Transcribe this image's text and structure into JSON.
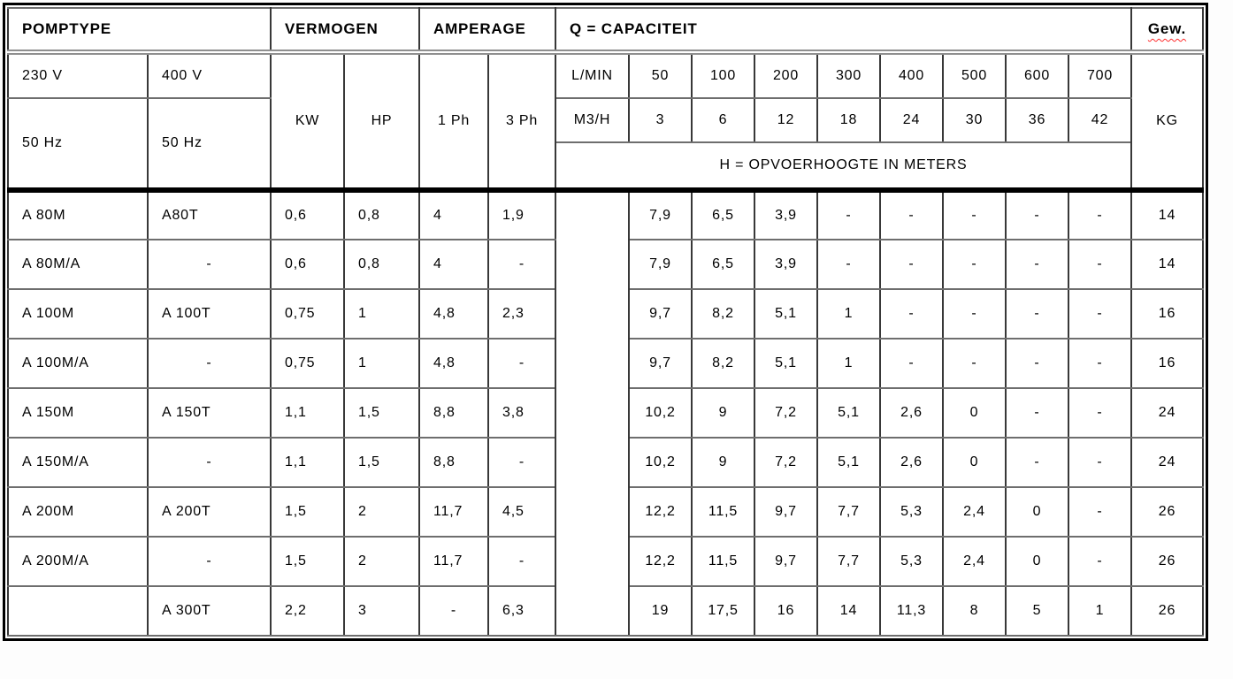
{
  "table": {
    "title_row": {
      "pomptype": "POMPTYPE",
      "vermogen": "VERMOGEN",
      "amperage": "AMPERAGE",
      "capaciteit": "Q = CAPACITEIT",
      "gewicht": "Gew."
    },
    "subheader": {
      "volt_230": "230 V",
      "volt_400": "400 V",
      "hz_230": "50 Hz",
      "hz_400": "50 Hz",
      "kw": "KW",
      "hp": "HP",
      "ph_1": "1 Ph",
      "ph_3": "3 Ph",
      "flow_lmin_label": "L/MIN",
      "flow_lmin": [
        "50",
        "100",
        "200",
        "300",
        "400",
        "500",
        "600",
        "700"
      ],
      "flow_m3h_label": "M3/H",
      "flow_m3h": [
        "3",
        "6",
        "12",
        "18",
        "24",
        "30",
        "36",
        "42"
      ],
      "head_note": "H = OPVOERHOOGTE IN METERS",
      "kg": "KG"
    },
    "rows": [
      {
        "t230": "A 80M",
        "t400": "A80T",
        "kw": "0,6",
        "hp": "0,8",
        "ph1": "4",
        "ph3": "1,9",
        "h": [
          "7,9",
          "6,5",
          "3,9",
          "-",
          "-",
          "-",
          "-",
          "-"
        ],
        "kg": "14"
      },
      {
        "t230": "A 80M/A",
        "t400": "-",
        "kw": "0,6",
        "hp": "0,8",
        "ph1": "4",
        "ph3": "-",
        "h": [
          "7,9",
          "6,5",
          "3,9",
          "-",
          "-",
          "-",
          "-",
          "-"
        ],
        "kg": "14"
      },
      {
        "t230": "A 100M",
        "t400": "A 100T",
        "kw": "0,75",
        "hp": "1",
        "ph1": "4,8",
        "ph3": "2,3",
        "h": [
          "9,7",
          "8,2",
          "5,1",
          "1",
          "-",
          "-",
          "-",
          "-"
        ],
        "kg": "16"
      },
      {
        "t230": "A 100M/A",
        "t400": "-",
        "kw": "0,75",
        "hp": "1",
        "ph1": "4,8",
        "ph3": "-",
        "h": [
          "9,7",
          "8,2",
          "5,1",
          "1",
          "-",
          "-",
          "-",
          "-"
        ],
        "kg": "16"
      },
      {
        "t230": "A 150M",
        "t400": "A 150T",
        "kw": "1,1",
        "hp": "1,5",
        "ph1": "8,8",
        "ph3": "3,8",
        "h": [
          "10,2",
          "9",
          "7,2",
          "5,1",
          "2,6",
          "0",
          "-",
          "-"
        ],
        "kg": "24"
      },
      {
        "t230": "A 150M/A",
        "t400": "-",
        "kw": "1,1",
        "hp": "1,5",
        "ph1": "8,8",
        "ph3": "-",
        "h": [
          "10,2",
          "9",
          "7,2",
          "5,1",
          "2,6",
          "0",
          "-",
          "-"
        ],
        "kg": "24"
      },
      {
        "t230": "A 200M",
        "t400": "A 200T",
        "kw": "1,5",
        "hp": "2",
        "ph1": "11,7",
        "ph3": "4,5",
        "h": [
          "12,2",
          "11,5",
          "9,7",
          "7,7",
          "5,3",
          "2,4",
          "0",
          "-"
        ],
        "kg": "26"
      },
      {
        "t230": "A 200M/A",
        "t400": "-",
        "kw": "1,5",
        "hp": "2",
        "ph1": "11,7",
        "ph3": "-",
        "h": [
          "12,2",
          "11,5",
          "9,7",
          "7,7",
          "5,3",
          "2,4",
          "0",
          "-"
        ],
        "kg": "26"
      },
      {
        "t230": "",
        "t400": "A 300T",
        "kw": "2,2",
        "hp": "3",
        "ph1": "-",
        "ph3": "6,3",
        "h": [
          "19",
          "17,5",
          "16",
          "14",
          "11,3",
          "8",
          "5",
          "1"
        ],
        "kg": "26"
      }
    ]
  },
  "colors": {
    "spellcheck_underline": "#ff2d2d",
    "border_vertical": "#383838",
    "border_horizontal": "#6e6e6e",
    "header_double_rule": "#8f8f8f",
    "section_separator": "#000000"
  }
}
